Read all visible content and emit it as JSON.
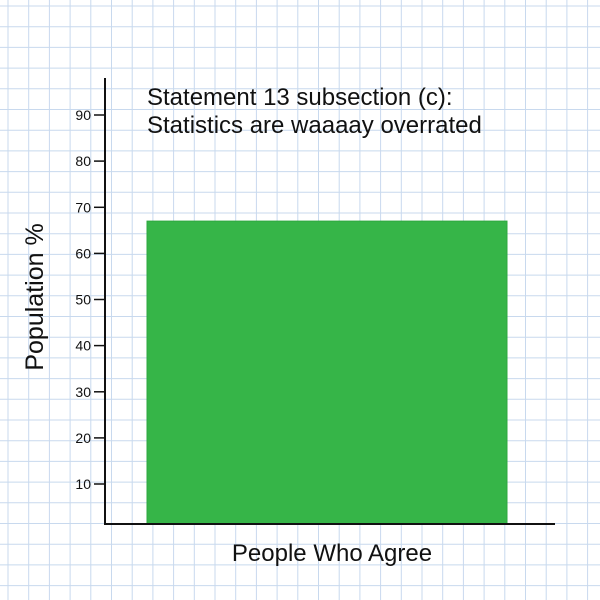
{
  "chart_data": {
    "type": "bar",
    "title_lines": [
      "Statement 13 subsection (c):",
      "Statistics are waaaay overrated"
    ],
    "xlabel": "People Who Agree",
    "ylabel": "Population %",
    "categories": [
      ""
    ],
    "values": [
      67
    ],
    "ylim": [
      0,
      100
    ],
    "yticks": [
      10,
      20,
      30,
      40,
      50,
      60,
      70,
      80,
      90
    ],
    "grid": true,
    "legend": "none"
  },
  "colors": {
    "bar": "#36b548",
    "bar_edge": "#2ea83f",
    "grid_line": "#c8d9ee",
    "axis": "#111111",
    "text": "#111111"
  }
}
